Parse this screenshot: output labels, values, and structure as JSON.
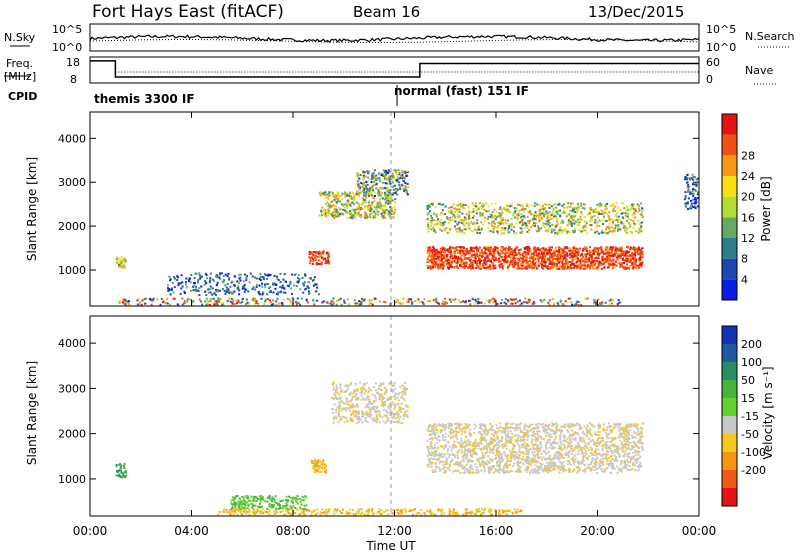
{
  "header": {
    "title": "Fort Hays East (fitACF)",
    "beam": "Beam 16",
    "date": "13/Dec/2015"
  },
  "time_axis": {
    "label": "Time UT",
    "range_hours": [
      0,
      24
    ],
    "ticks": [
      "00:00",
      "04:00",
      "08:00",
      "12:00",
      "16:00",
      "20:00",
      "00:00"
    ],
    "tick_hours": [
      0,
      4,
      8,
      12,
      16,
      20,
      24
    ]
  },
  "chart_data": [
    {
      "type": "line",
      "panel": "noise",
      "left_label": "N.Sky",
      "right_label": "N.Search",
      "left_ticks": [
        "10^5",
        "10^0"
      ],
      "right_ticks": [
        "10^5",
        "10^0"
      ],
      "series": [
        {
          "name": "N.Sky",
          "style": "solid"
        },
        {
          "name": "N.Search",
          "style": "dotted"
        }
      ]
    },
    {
      "type": "line",
      "panel": "frequency",
      "left_label_top": "Freq.",
      "left_label_bottom": "[MHz]",
      "right_label": "Nave",
      "left_ticks": [
        "18",
        "8"
      ],
      "right_ticks": [
        "60",
        "0"
      ],
      "freq_ylim": [
        8,
        18
      ],
      "freq_steps": [
        [
          0,
          16.5
        ],
        [
          1.0,
          10.3
        ],
        [
          13.0,
          15.5
        ],
        [
          24,
          15.5
        ]
      ],
      "nave_ylim": [
        0,
        60
      ]
    },
    {
      "type": "table",
      "panel": "cpid",
      "label": "CPID",
      "segments": [
        {
          "start_hour": 0,
          "text": "themis 3300 IF"
        },
        {
          "start_hour": 12.1,
          "text": "normal (fast) 151 IF"
        }
      ]
    },
    {
      "type": "heatmap",
      "panel": "power",
      "ylabel": "Slant Range [km]",
      "ylim": [
        180,
        4600
      ],
      "yticks": [
        1000,
        2000,
        3000,
        4000
      ],
      "colorbar_label": "Power [dB]",
      "colorbar_ticks": [
        4,
        8,
        12,
        16,
        20,
        24,
        28
      ],
      "colorbar_colors": [
        "#0a1ee6",
        "#1e46b4",
        "#2d7d8c",
        "#64aa64",
        "#b4dc32",
        "#fadc14",
        "#fa9614",
        "#f05014",
        "#e61414"
      ]
    },
    {
      "type": "heatmap",
      "panel": "velocity",
      "ylabel": "Slant Range [km]",
      "ylim": [
        180,
        4600
      ],
      "yticks": [
        1000,
        2000,
        3000,
        4000
      ],
      "colorbar_label": "Velocity [m s⁻¹]",
      "colorbar_ticks": [
        "200",
        "100",
        "50",
        "15",
        "-15",
        "-50",
        "-100",
        "-200"
      ],
      "colorbar_colors": [
        "#1432b4",
        "#1e5aa0",
        "#288c64",
        "#46b43c",
        "#64d22d",
        "#c8c8c8",
        "#f5c81e",
        "#f59614",
        "#f05a14",
        "#e61414"
      ]
    }
  ]
}
